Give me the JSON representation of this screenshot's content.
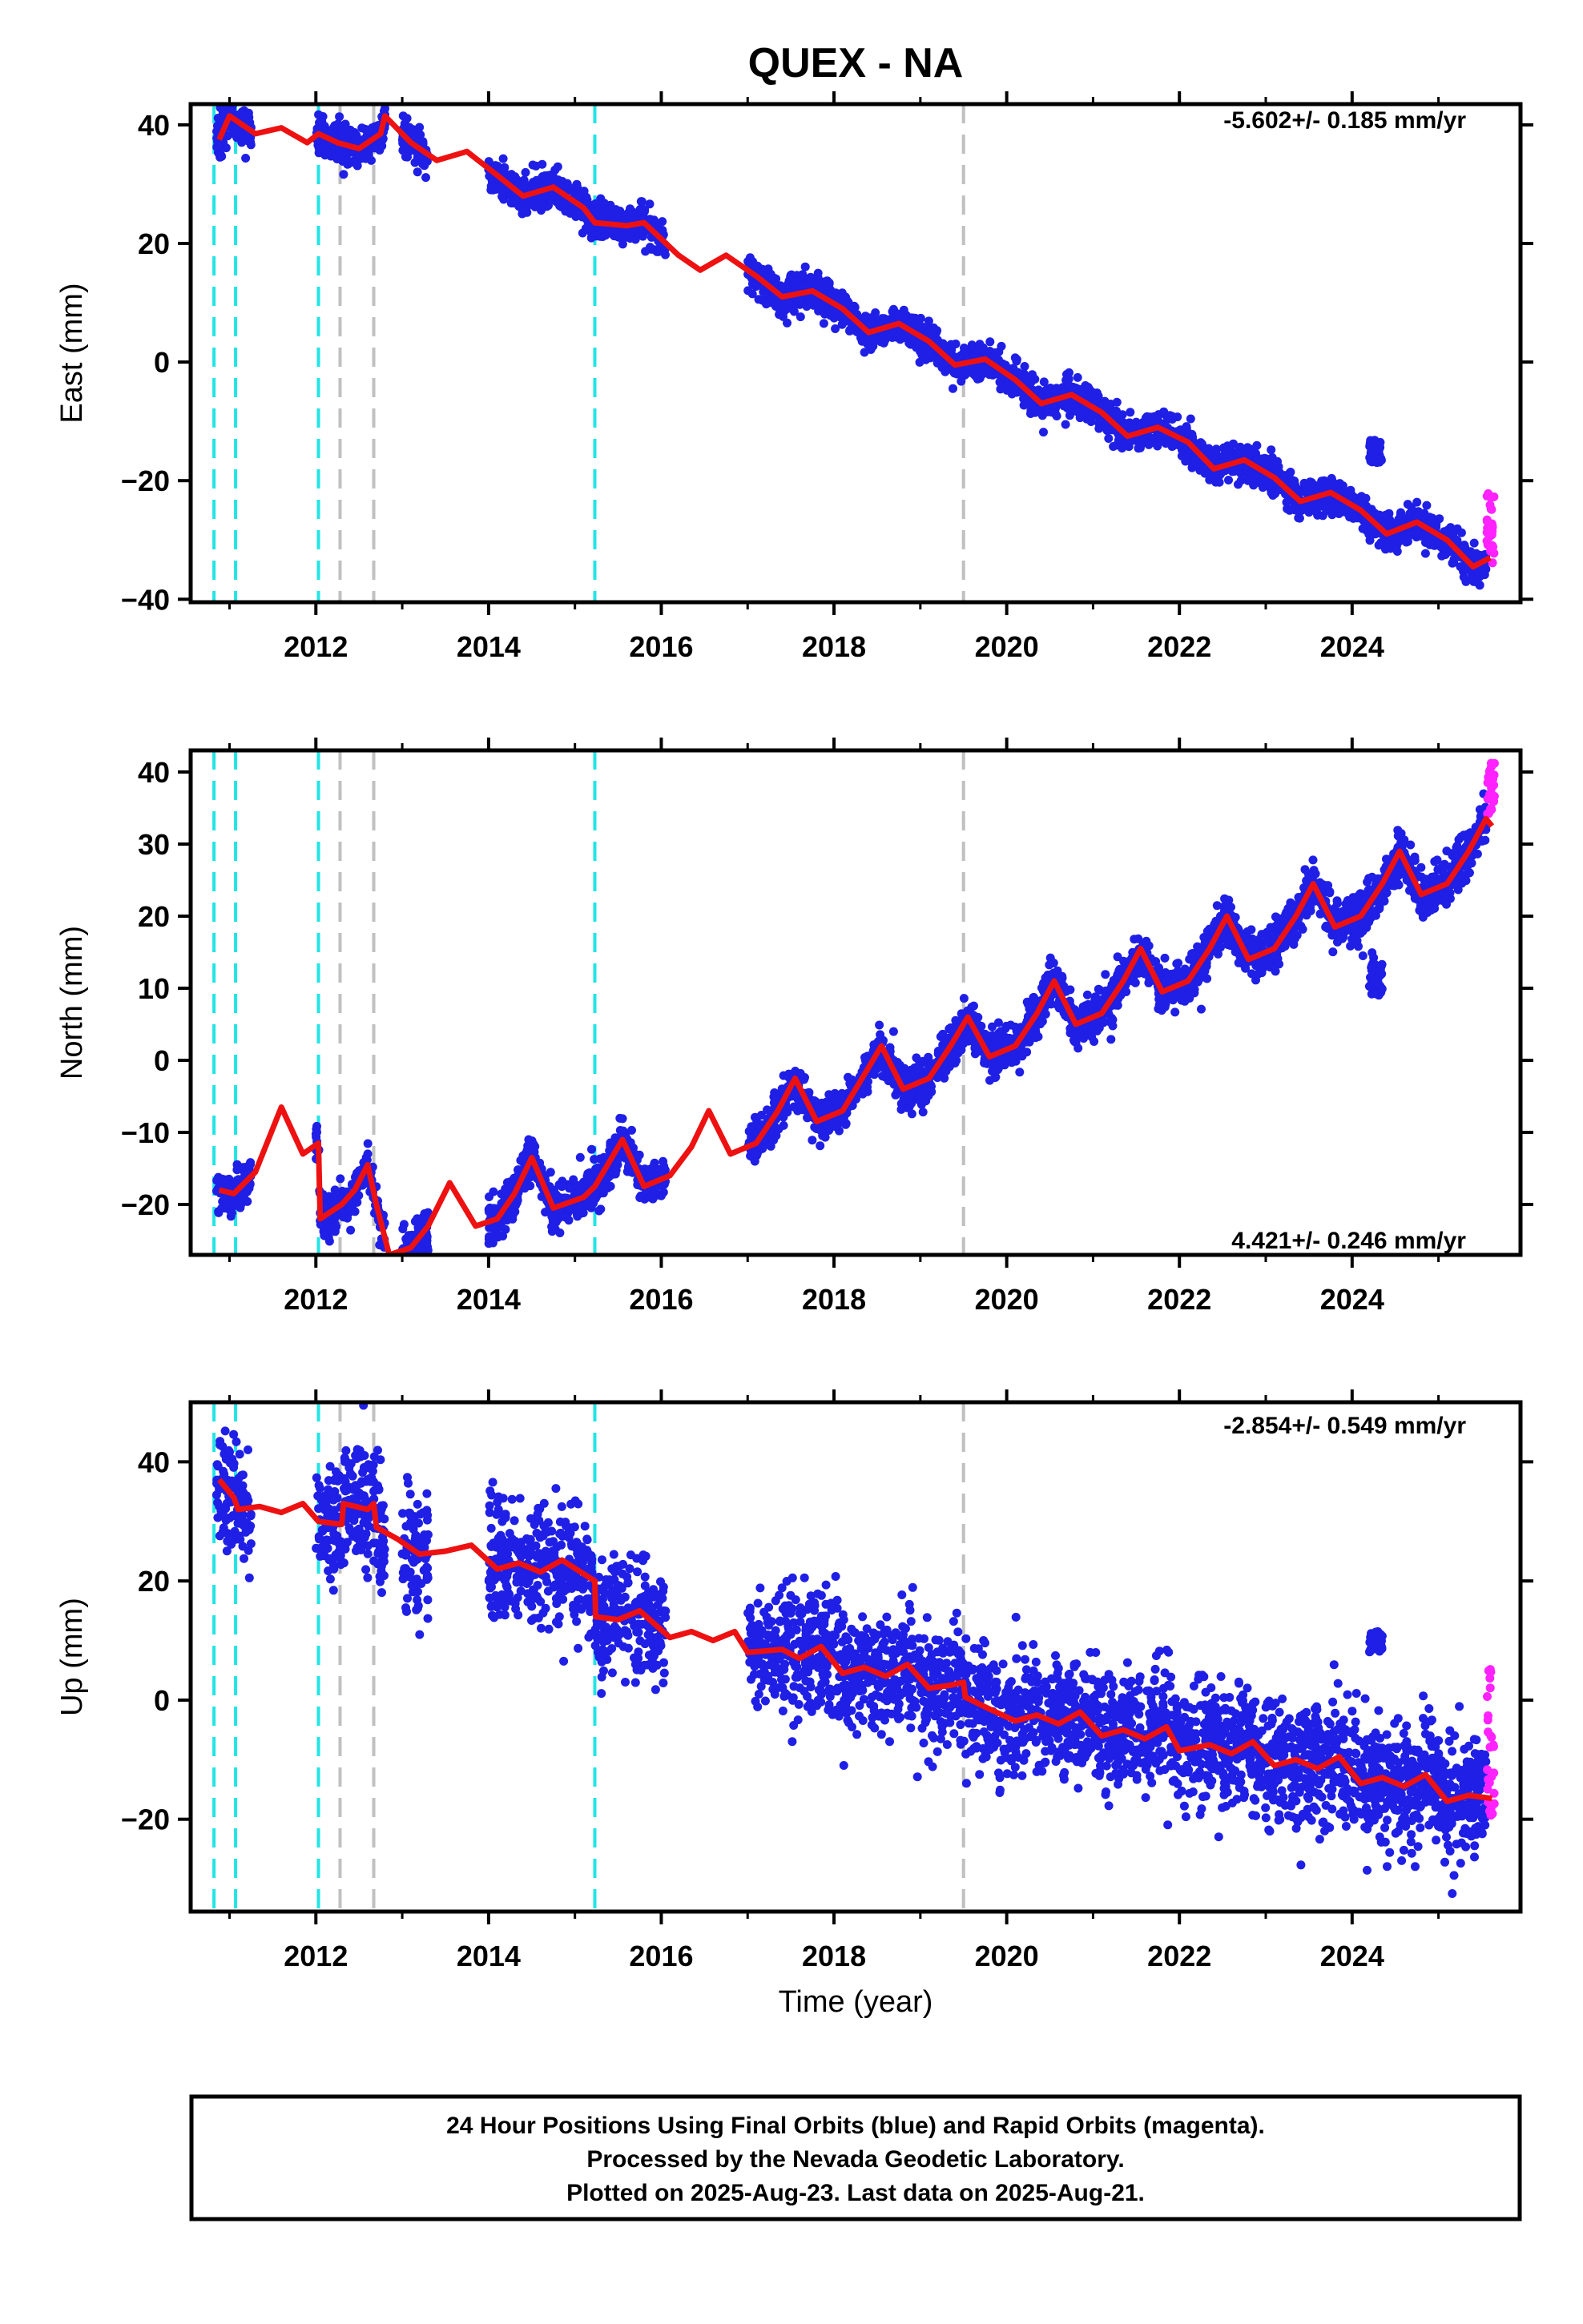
{
  "title": "QUEX - NA",
  "colors": {
    "final_points": "#1f1fe6",
    "rapid_points": "#ff22ff",
    "model_line": "#ee1111",
    "equipment_change": "#22e5e5",
    "other_offset": "#c0c0c0",
    "frame": "#000000"
  },
  "chart_data": [
    {
      "type": "scatter",
      "name": "east",
      "ylabel": "East (mm)",
      "rate_text": "-5.602+/- 0.185 mm/yr",
      "xlim": [
        2010.55,
        2025.95
      ],
      "ylim": [
        -40.5,
        43.5
      ],
      "x_ticks": [
        2012,
        2014,
        2016,
        2018,
        2020,
        2022,
        2024
      ],
      "y_ticks": [
        -40,
        -20,
        0,
        20,
        40
      ],
      "y_tick_labels": [
        "−40",
        "−20",
        "0",
        "20",
        "40"
      ],
      "cyan_lines": [
        2010.82,
        2011.07,
        2012.03,
        2015.23
      ],
      "gray_lines": [
        2012.28,
        2012.67,
        2019.5
      ],
      "segments": [
        [
          2010.85,
          2011.25,
          39.5,
          4.0,
          1.5
        ],
        [
          2012.0,
          2012.8,
          38.0,
          3.0,
          1.5
        ],
        [
          2013.0,
          2013.3,
          34.0,
          2.0,
          1.5
        ],
        [
          2014.0,
          2016.05,
          31.5,
          3.5,
          1.5
        ],
        [
          2017.0,
          2025.55,
          13.0,
          3.5,
          1.5
        ],
        [
          2024.2,
          2024.35,
          -15.0,
          2.0,
          1.5
        ]
      ],
      "points_per_year": 300,
      "rapid": {
        "x_start": 2025.56,
        "x_end": 2025.65,
        "y_min": -34,
        "y_max": -22
      },
      "model": [
        [
          2010.88,
          37.5
        ],
        [
          2011.0,
          41.5
        ],
        [
          2011.1,
          40.5
        ],
        [
          2011.3,
          38.5
        ],
        [
          2011.6,
          39.5
        ],
        [
          2011.9,
          37.0
        ],
        [
          2012.03,
          38.5
        ],
        [
          2012.25,
          37.0
        ],
        [
          2012.5,
          36.0
        ],
        [
          2012.75,
          38.5
        ],
        [
          2012.8,
          41.5
        ],
        [
          2013.1,
          37.0
        ],
        [
          2013.4,
          34.0
        ],
        [
          2013.75,
          35.5
        ],
        [
          2014.1,
          31.5
        ],
        [
          2014.4,
          28.0
        ],
        [
          2014.75,
          29.5
        ],
        [
          2015.1,
          26.0
        ],
        [
          2015.23,
          23.5
        ],
        [
          2015.6,
          23.0
        ],
        [
          2015.8,
          23.5
        ],
        [
          2016.2,
          18.0
        ],
        [
          2016.45,
          15.5
        ],
        [
          2016.75,
          18.0
        ],
        [
          2017.1,
          14.5
        ],
        [
          2017.4,
          11.0
        ],
        [
          2017.75,
          12.0
        ],
        [
          2018.1,
          9.0
        ],
        [
          2018.4,
          5.0
        ],
        [
          2018.75,
          6.5
        ],
        [
          2019.1,
          3.5
        ],
        [
          2019.4,
          -0.5
        ],
        [
          2019.75,
          0.5
        ],
        [
          2020.1,
          -3.0
        ],
        [
          2020.4,
          -7.0
        ],
        [
          2020.75,
          -5.5
        ],
        [
          2021.1,
          -8.5
        ],
        [
          2021.4,
          -12.5
        ],
        [
          2021.75,
          -11.0
        ],
        [
          2022.1,
          -13.5
        ],
        [
          2022.4,
          -18.0
        ],
        [
          2022.75,
          -16.5
        ],
        [
          2023.1,
          -19.5
        ],
        [
          2023.4,
          -23.5
        ],
        [
          2023.75,
          -22.0
        ],
        [
          2024.1,
          -25.0
        ],
        [
          2024.4,
          -29.0
        ],
        [
          2024.75,
          -27.0
        ],
        [
          2025.1,
          -30.0
        ],
        [
          2025.4,
          -34.5
        ],
        [
          2025.6,
          -33.0
        ]
      ]
    },
    {
      "type": "scatter",
      "name": "north",
      "ylabel": "North (mm)",
      "rate_text": "4.421+/- 0.246 mm/yr",
      "xlim": [
        2010.55,
        2025.95
      ],
      "ylim": [
        -27.0,
        43.0
      ],
      "x_ticks": [
        2012,
        2014,
        2016,
        2018,
        2020,
        2022,
        2024
      ],
      "y_ticks": [
        -20,
        -10,
        0,
        10,
        20,
        30,
        40
      ],
      "y_tick_labels": [
        "−20",
        "−10",
        "0",
        "10",
        "20",
        "30",
        "40"
      ],
      "cyan_lines": [
        2010.82,
        2011.07,
        2012.03,
        2015.23
      ],
      "gray_lines": [
        2012.28,
        2012.67,
        2019.5
      ],
      "segments": [
        [
          2010.85,
          2011.25,
          -19.0,
          3.0,
          1.5
        ],
        [
          2012.0,
          2012.8,
          -19.5,
          4.0,
          1.5
        ],
        [
          2013.0,
          2013.3,
          -23.0,
          3.0,
          1.5
        ],
        [
          2014.0,
          2016.05,
          -17.0,
          4.0,
          1.5
        ],
        [
          2017.0,
          2025.55,
          9.0,
          3.5,
          1.5
        ],
        [
          2024.2,
          2024.35,
          12.0,
          3.0,
          1.5
        ]
      ],
      "points_per_year": 300,
      "rapid": {
        "x_start": 2025.56,
        "x_end": 2025.65,
        "y_min": 34,
        "y_max": 41.5
      },
      "model": [
        [
          2010.88,
          -18.0
        ],
        [
          2011.05,
          -18.5
        ],
        [
          2011.3,
          -15.5
        ],
        [
          2011.6,
          -6.5
        ],
        [
          2011.85,
          -13.0
        ],
        [
          2012.03,
          -11.5
        ],
        [
          2012.05,
          -22.0
        ],
        [
          2012.3,
          -20.0
        ],
        [
          2012.45,
          -18.0
        ],
        [
          2012.6,
          -14.5
        ],
        [
          2012.7,
          -20.0
        ],
        [
          2012.85,
          -27.0
        ],
        [
          2013.1,
          -26.0
        ],
        [
          2013.3,
          -23.0
        ],
        [
          2013.55,
          -17.0
        ],
        [
          2013.85,
          -23.0
        ],
        [
          2014.1,
          -22.0
        ],
        [
          2014.3,
          -18.5
        ],
        [
          2014.5,
          -13.5
        ],
        [
          2014.75,
          -20.5
        ],
        [
          2015.1,
          -19.0
        ],
        [
          2015.23,
          -17.5
        ],
        [
          2015.55,
          -11.0
        ],
        [
          2015.8,
          -17.5
        ],
        [
          2016.1,
          -16.0
        ],
        [
          2016.35,
          -12.0
        ],
        [
          2016.55,
          -7.0
        ],
        [
          2016.8,
          -13.0
        ],
        [
          2017.1,
          -11.5
        ],
        [
          2017.35,
          -7.0
        ],
        [
          2017.55,
          -2.5
        ],
        [
          2017.8,
          -8.5
        ],
        [
          2018.1,
          -7.0
        ],
        [
          2018.35,
          -2.0
        ],
        [
          2018.55,
          2.0
        ],
        [
          2018.8,
          -4.0
        ],
        [
          2019.1,
          -2.5
        ],
        [
          2019.35,
          2.0
        ],
        [
          2019.55,
          6.0
        ],
        [
          2019.8,
          0.5
        ],
        [
          2020.1,
          2.0
        ],
        [
          2020.35,
          6.5
        ],
        [
          2020.55,
          11.0
        ],
        [
          2020.8,
          5.0
        ],
        [
          2021.1,
          6.5
        ],
        [
          2021.35,
          11.0
        ],
        [
          2021.55,
          15.5
        ],
        [
          2021.8,
          9.5
        ],
        [
          2022.1,
          11.0
        ],
        [
          2022.35,
          15.5
        ],
        [
          2022.55,
          20.0
        ],
        [
          2022.8,
          14.0
        ],
        [
          2023.1,
          15.5
        ],
        [
          2023.35,
          20.0
        ],
        [
          2023.55,
          24.5
        ],
        [
          2023.8,
          18.5
        ],
        [
          2024.1,
          20.0
        ],
        [
          2024.35,
          24.5
        ],
        [
          2024.55,
          29.0
        ],
        [
          2024.8,
          23.0
        ],
        [
          2025.1,
          24.5
        ],
        [
          2025.35,
          29.0
        ],
        [
          2025.55,
          33.5
        ],
        [
          2025.62,
          32.5
        ]
      ]
    },
    {
      "type": "scatter",
      "name": "up",
      "ylabel": "Up (mm)",
      "rate_text": "-2.854+/- 0.549 mm/yr",
      "xlim": [
        2010.55,
        2025.95
      ],
      "ylim": [
        -35.5,
        50.0
      ],
      "x_ticks": [
        2012,
        2014,
        2016,
        2018,
        2020,
        2022,
        2024
      ],
      "y_ticks": [
        -20,
        0,
        20,
        40
      ],
      "y_tick_labels": [
        "−20",
        "0",
        "20",
        "40"
      ],
      "xlabel": "Time (year)",
      "cyan_lines": [
        2010.82,
        2011.07,
        2012.03,
        2015.23
      ],
      "gray_lines": [
        2012.28,
        2012.67,
        2019.5
      ],
      "segments": [
        [
          2010.85,
          2011.25,
          34.0,
          10.0,
          5.0
        ],
        [
          2012.0,
          2012.8,
          32.0,
          6.0,
          5.0
        ],
        [
          2013.0,
          2013.3,
          24.0,
          3.0,
          5.0
        ],
        [
          2014.0,
          2016.05,
          18.0,
          12.0,
          5.0
        ],
        [
          2017.0,
          2025.55,
          -3.0,
          15.0,
          5.0
        ],
        [
          2024.2,
          2024.35,
          10.0,
          2.0,
          5.0
        ]
      ],
      "points_per_year": 300,
      "rapid": {
        "x_start": 2025.56,
        "x_end": 2025.65,
        "y_min": -20,
        "y_max": 6
      },
      "model": [
        [
          2010.88,
          37.0
        ],
        [
          2011.05,
          34.0
        ],
        [
          2011.1,
          32.0
        ],
        [
          2011.35,
          32.5
        ],
        [
          2011.6,
          31.5
        ],
        [
          2011.85,
          33.0
        ],
        [
          2012.03,
          30.0
        ],
        [
          2012.3,
          29.5
        ],
        [
          2012.32,
          33.0
        ],
        [
          2012.6,
          32.0
        ],
        [
          2012.67,
          33.0
        ],
        [
          2012.7,
          29.0
        ],
        [
          2012.95,
          27.0
        ],
        [
          2013.2,
          24.5
        ],
        [
          2013.5,
          25.0
        ],
        [
          2013.8,
          26.0
        ],
        [
          2014.1,
          22.0
        ],
        [
          2014.35,
          23.0
        ],
        [
          2014.6,
          21.5
        ],
        [
          2014.85,
          23.5
        ],
        [
          2015.23,
          20.0
        ],
        [
          2015.24,
          14.0
        ],
        [
          2015.5,
          13.5
        ],
        [
          2015.75,
          15.0
        ],
        [
          2016.1,
          10.5
        ],
        [
          2016.35,
          11.5
        ],
        [
          2016.6,
          10.0
        ],
        [
          2016.85,
          11.5
        ],
        [
          2017.0,
          8.0
        ],
        [
          2017.4,
          8.5
        ],
        [
          2017.6,
          7.0
        ],
        [
          2017.85,
          9.0
        ],
        [
          2018.1,
          4.5
        ],
        [
          2018.35,
          5.5
        ],
        [
          2018.6,
          4.0
        ],
        [
          2018.85,
          6.0
        ],
        [
          2019.1,
          2.0
        ],
        [
          2019.35,
          2.5
        ],
        [
          2019.5,
          3.0
        ],
        [
          2019.52,
          0.5
        ],
        [
          2019.8,
          -1.5
        ],
        [
          2020.1,
          -3.5
        ],
        [
          2020.35,
          -2.5
        ],
        [
          2020.6,
          -4.0
        ],
        [
          2020.85,
          -2.0
        ],
        [
          2021.1,
          -6.0
        ],
        [
          2021.35,
          -5.0
        ],
        [
          2021.6,
          -6.5
        ],
        [
          2021.85,
          -4.5
        ],
        [
          2022.0,
          -8.5
        ],
        [
          2022.35,
          -7.5
        ],
        [
          2022.6,
          -9.0
        ],
        [
          2022.85,
          -7.0
        ],
        [
          2023.1,
          -11.0
        ],
        [
          2023.35,
          -10.0
        ],
        [
          2023.6,
          -11.5
        ],
        [
          2023.85,
          -9.5
        ],
        [
          2024.1,
          -14.0
        ],
        [
          2024.35,
          -13.0
        ],
        [
          2024.6,
          -14.5
        ],
        [
          2024.85,
          -12.5
        ],
        [
          2025.1,
          -17.0
        ],
        [
          2025.35,
          -16.0
        ],
        [
          2025.62,
          -16.5
        ]
      ]
    }
  ],
  "footer": {
    "line1": "24 Hour Positions Using Final Orbits (blue) and Rapid Orbits (magenta).",
    "line2": "Processed by the Nevada Geodetic Laboratory.",
    "line3": "Plotted on 2025-Aug-23. Last data on 2025-Aug-21."
  }
}
